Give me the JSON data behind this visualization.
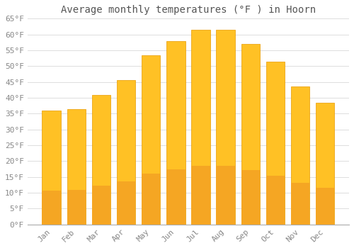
{
  "title": "Average monthly temperatures (°F ) in Hoorn",
  "months": [
    "Jan",
    "Feb",
    "Mar",
    "Apr",
    "May",
    "Jun",
    "Jul",
    "Aug",
    "Sep",
    "Oct",
    "Nov",
    "Dec"
  ],
  "values": [
    36,
    36.5,
    41,
    45.5,
    53.5,
    58,
    61.5,
    61.5,
    57,
    51.5,
    43.5,
    38.5
  ],
  "bar_color_top": "#FFC125",
  "bar_color_bottom": "#F5A623",
  "bar_edge_color": "#E89A00",
  "background_color": "#FFFFFF",
  "grid_color": "#DDDDDD",
  "text_color": "#888888",
  "title_color": "#555555",
  "ylim": [
    0,
    65
  ],
  "yticks": [
    0,
    5,
    10,
    15,
    20,
    25,
    30,
    35,
    40,
    45,
    50,
    55,
    60,
    65
  ],
  "title_fontsize": 10,
  "tick_fontsize": 8,
  "bar_width": 0.75
}
